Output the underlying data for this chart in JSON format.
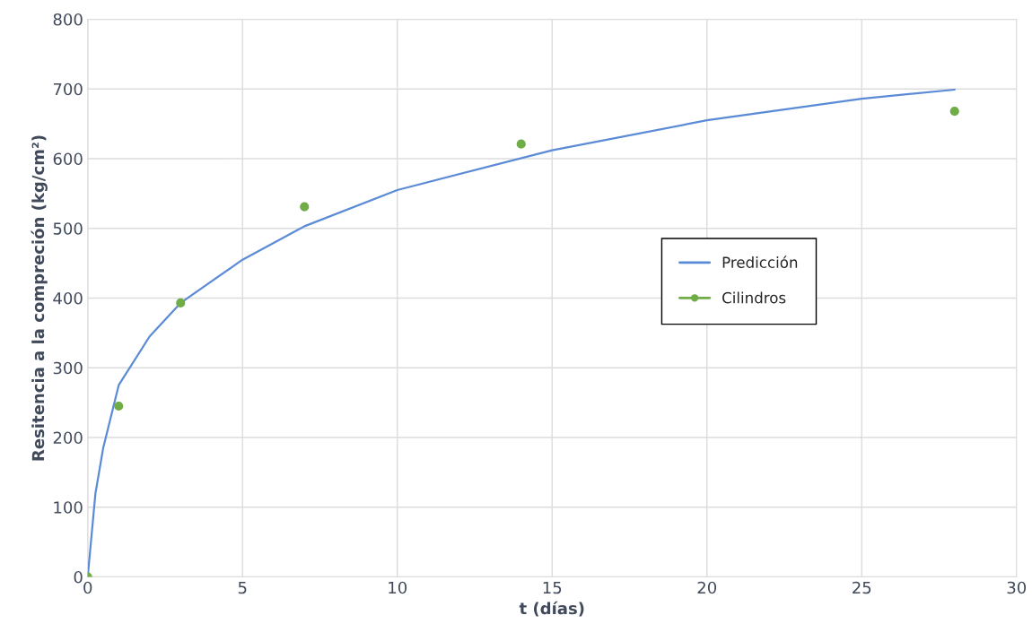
{
  "chart_data": {
    "type": "line",
    "xlabel": "t (días)",
    "ylabel": "Resitencia a la compreción (kg/cm²)",
    "xlim": [
      0,
      30
    ],
    "xticks": [
      0,
      5,
      10,
      15,
      20,
      25,
      30
    ],
    "ylim": [
      0,
      800
    ],
    "yticks": [
      0,
      100,
      200,
      300,
      400,
      500,
      600,
      700,
      800
    ],
    "grid": true,
    "legend": "right",
    "series": [
      {
        "name": "Predicción",
        "color": "#5b8bd6",
        "marker": "none",
        "x": [
          0,
          0.25,
          0.5,
          1,
          2,
          3,
          5,
          7,
          10,
          15,
          20,
          25,
          28
        ],
        "values": [
          0,
          120,
          185,
          275,
          345,
          393,
          455,
          503,
          555,
          612,
          655,
          686,
          699
        ]
      },
      {
        "name": "Cilindros",
        "type": "scatter",
        "color": "#70ad47",
        "marker": "circle",
        "x": [
          0,
          1,
          3,
          7,
          14,
          28
        ],
        "values": [
          0,
          245,
          393,
          531,
          621,
          668
        ]
      }
    ]
  }
}
